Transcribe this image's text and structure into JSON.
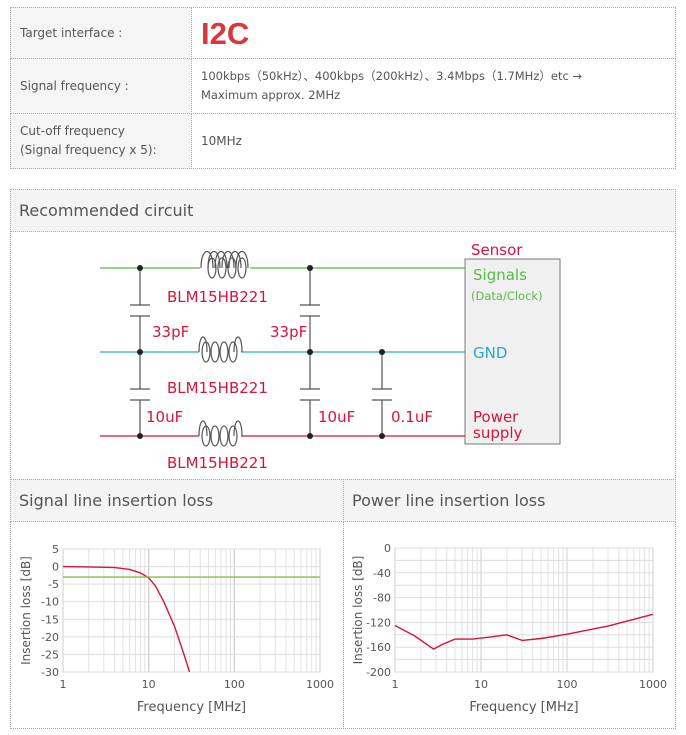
{
  "spec_table": {
    "rows": [
      {
        "label": "Target interface :",
        "value": "I2C"
      },
      {
        "label": "Signal frequency :",
        "value_line1": "100kbps（50kHz）、400kbps（200kHz）、3.4Mbps（1.7MHz）etc →",
        "value_line2": "Maximum approx. 2MHz"
      },
      {
        "label_line1": "Cut-off frequency",
        "label_line2": "(Signal frequency x 5):",
        "value": "10MHz"
      }
    ],
    "accent_color": "#d9363e"
  },
  "circuit": {
    "title": "Recommended circuit",
    "inductors": [
      "BLM15HB221",
      "BLM15HB221",
      "BLM15HB221"
    ],
    "capacitors": [
      "33pF",
      "33pF",
      "10uF",
      "10uF",
      "0.1uF"
    ],
    "sensor": {
      "title": "Sensor",
      "signals": "Signals",
      "signals_sub": "(Data/Clock)",
      "gnd": "GND",
      "power_line1": "Power",
      "power_line2": "supply"
    },
    "colors": {
      "signal": "#58b947",
      "gnd": "#2aa7c9",
      "power": "#d6143c",
      "label": "#d6143c"
    }
  },
  "chart_data": [
    {
      "type": "line",
      "title": "Signal line insertion loss",
      "xlabel": "Frequency [MHz]",
      "ylabel": "Insertion loss [dB]",
      "xscale": "log",
      "xlim": [
        1,
        1000
      ],
      "ylim": [
        -30,
        5
      ],
      "xticks": [
        "1",
        "10",
        "100",
        "1000"
      ],
      "yticks": [
        "5",
        "0",
        "-5",
        "-10",
        "-15",
        "-20",
        "-25",
        "-30"
      ],
      "grid": true,
      "series": [
        {
          "color": "#d6143c",
          "x": [
            1,
            2,
            4,
            6,
            8,
            10,
            12,
            15,
            20,
            25,
            30
          ],
          "y": [
            0,
            -0.1,
            -0.3,
            -0.8,
            -1.8,
            -3.2,
            -5.5,
            -10,
            -17,
            -24,
            -30
          ]
        },
        {
          "color": "#7dc242",
          "x": [
            1,
            1000
          ],
          "y": [
            -3,
            -3
          ]
        }
      ]
    },
    {
      "type": "line",
      "title": "Power line insertion loss",
      "xlabel": "Frequency [MHz]",
      "ylabel": "Insertion loss [dB]",
      "xscale": "log",
      "xlim": [
        1,
        1000
      ],
      "ylim": [
        -200,
        0
      ],
      "xticks": [
        "1",
        "10",
        "100",
        "1000"
      ],
      "yticks": [
        "0",
        "-40",
        "-80",
        "-120",
        "-160",
        "-200"
      ],
      "grid": true,
      "series": [
        {
          "color": "#d6143c",
          "x": [
            1,
            1.7,
            2.8,
            3.5,
            5,
            8,
            12,
            20,
            24,
            30,
            50,
            100,
            300,
            1000
          ],
          "y": [
            -125,
            -142,
            -163,
            -156,
            -147,
            -147,
            -144,
            -140,
            -144,
            -149,
            -146,
            -139,
            -126,
            -107
          ]
        }
      ]
    }
  ]
}
